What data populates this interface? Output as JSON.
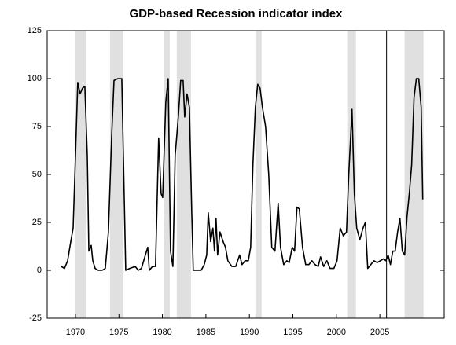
{
  "chart_data": {
    "type": "line",
    "title": "GDP-based Recession indicator index",
    "x": [
      1968.37,
      1968.74,
      1969.1,
      1969.46,
      1969.73,
      1970.0,
      1970.27,
      1970.54,
      1970.81,
      1971.08,
      1971.36,
      1971.54,
      1971.81,
      1971.99,
      1972.26,
      1972.62,
      1973.07,
      1973.43,
      1973.79,
      1974.16,
      1974.43,
      1974.88,
      1975.33,
      1975.6,
      1975.78,
      1976.23,
      1976.87,
      1977.23,
      1977.59,
      1978.04,
      1978.31,
      1978.49,
      1978.85,
      1979.21,
      1979.57,
      1979.85,
      1980.03,
      1980.39,
      1980.66,
      1980.93,
      1981.2,
      1981.47,
      1981.83,
      1982.1,
      1982.38,
      1982.56,
      1982.83,
      1983.1,
      1983.37,
      1983.55,
      1983.91,
      1984.45,
      1984.81,
      1985.09,
      1985.27,
      1985.54,
      1985.81,
      1985.99,
      1986.17,
      1986.35,
      1986.62,
      1986.98,
      1987.25,
      1987.52,
      1987.98,
      1988.43,
      1988.88,
      1989.15,
      1989.51,
      1989.87,
      1990.14,
      1990.41,
      1990.69,
      1990.96,
      1991.23,
      1991.5,
      1991.86,
      1992.22,
      1992.58,
      1992.94,
      1993.31,
      1993.58,
      1993.94,
      1994.3,
      1994.57,
      1994.93,
      1995.2,
      1995.47,
      1995.74,
      1996.11,
      1996.47,
      1996.83,
      1997.19,
      1997.55,
      1997.91,
      1998.18,
      1998.54,
      1998.91,
      1999.27,
      1999.72,
      2000.08,
      2000.44,
      2000.8,
      2001.16,
      2001.43,
      2001.8,
      2002.07,
      2002.34,
      2002.7,
      2003.06,
      2003.33,
      2003.6,
      2003.96,
      2004.33,
      2004.69,
      2005.05,
      2005.41,
      2005.68,
      2005.95,
      2006.22,
      2006.49,
      2006.76,
      2007.04,
      2007.31,
      2007.58,
      2007.85,
      2008.12,
      2008.39,
      2008.66,
      2008.93,
      2009.2,
      2009.47,
      2009.75,
      2009.93
    ],
    "values": [
      2,
      1,
      5,
      15,
      22,
      60,
      98,
      92,
      95,
      96,
      60,
      10,
      13,
      5,
      1,
      0,
      0,
      1,
      20,
      70,
      99,
      100,
      100,
      40,
      0,
      1,
      2,
      0,
      1,
      8,
      12,
      0,
      2,
      2,
      69,
      40,
      38,
      88,
      100,
      10,
      2,
      60,
      80,
      99,
      99,
      80,
      92,
      85,
      30,
      0,
      0,
      0,
      3,
      8,
      30,
      15,
      22,
      10,
      27,
      8,
      20,
      15,
      12,
      5,
      2,
      2,
      8,
      3,
      5,
      5,
      12,
      55,
      85,
      97,
      95,
      85,
      75,
      50,
      12,
      10,
      35,
      12,
      3,
      5,
      4,
      12,
      10,
      33,
      32,
      12,
      3,
      3,
      5,
      3,
      2,
      7,
      2,
      5,
      1,
      1,
      5,
      22,
      18,
      20,
      50,
      84,
      40,
      22,
      16,
      22,
      25,
      1,
      3,
      5,
      4,
      5,
      6,
      5,
      8,
      3,
      10,
      10,
      20,
      27,
      10,
      8,
      28,
      40,
      55,
      90,
      100,
      100,
      85,
      37
    ],
    "color": "#000000",
    "shaded_periods": [
      [
        1969.91,
        1971.26
      ],
      [
        1973.97,
        1975.51
      ],
      [
        1980.21,
        1980.84
      ],
      [
        1981.65,
        1983.28
      ],
      [
        1990.69,
        1991.41
      ],
      [
        2001.25,
        2002.25
      ],
      [
        2007.85,
        2010.02
      ]
    ],
    "shade_color": "#e0e0e0",
    "vline": 2005.77,
    "xlim": [
      1966.75,
      2012.4
    ],
    "xticks": [
      1970,
      1975,
      1980,
      1985,
      1990,
      1995,
      2000,
      2005
    ],
    "ylim": [
      -25,
      125
    ],
    "yticks": [
      -25,
      0,
      25,
      50,
      75,
      100,
      125
    ]
  }
}
